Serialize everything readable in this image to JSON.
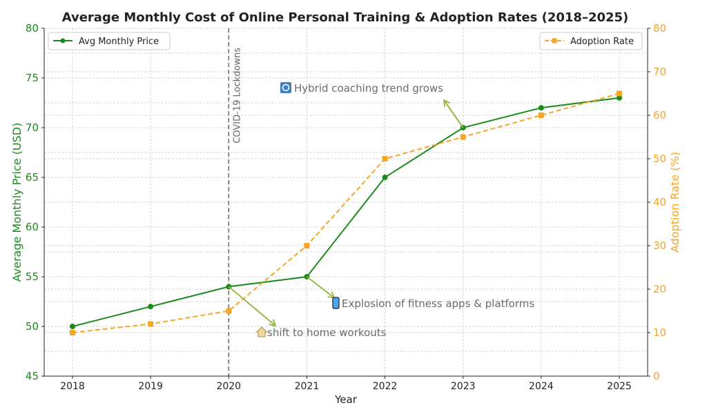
{
  "chart_data": {
    "type": "line",
    "title": "Average Monthly Cost of Online Personal Training & Adoption Rates (2018–2025)",
    "xlabel": "Year",
    "ylabel_left": "Average Monthly Price (USD)",
    "ylabel_right": "Adoption Rate (%)",
    "categories": [
      "2018",
      "2019",
      "2020",
      "2021",
      "2022",
      "2023",
      "2024",
      "2025"
    ],
    "ylim_left": [
      45,
      80
    ],
    "yticks_left": [
      "45",
      "50",
      "55",
      "60",
      "65",
      "70",
      "75",
      "80"
    ],
    "ylim_right": [
      0,
      80
    ],
    "yticks_right": [
      "0",
      "10",
      "20",
      "30",
      "40",
      "50",
      "60",
      "70",
      "80"
    ],
    "grid": true,
    "series": [
      {
        "name": "Avg Monthly Price",
        "axis": "left",
        "color": "#1a8a1a",
        "style": "solid",
        "marker": "circle",
        "legend": "top-left",
        "values": [
          50,
          52,
          54,
          55,
          65,
          70,
          72,
          73
        ]
      },
      {
        "name": "Adoption Rate",
        "axis": "right",
        "color": "#f5a623",
        "style": "dashed",
        "marker": "square",
        "legend": "top-right",
        "values": [
          10,
          12,
          15,
          30,
          50,
          55,
          60,
          65
        ]
      }
    ],
    "vline": {
      "x": "2020",
      "label": "COVID-19 Lockdowns",
      "color": "#666666"
    },
    "annotations": [
      {
        "text": "shift to home workouts",
        "icon": "house-icon",
        "point": "2020"
      },
      {
        "text": "Explosion of fitness apps & platforms",
        "icon": "phone-icon",
        "point": "2021"
      },
      {
        "text": "Hybrid coaching trend grows",
        "icon": "refresh-icon",
        "point": "2023"
      }
    ]
  }
}
